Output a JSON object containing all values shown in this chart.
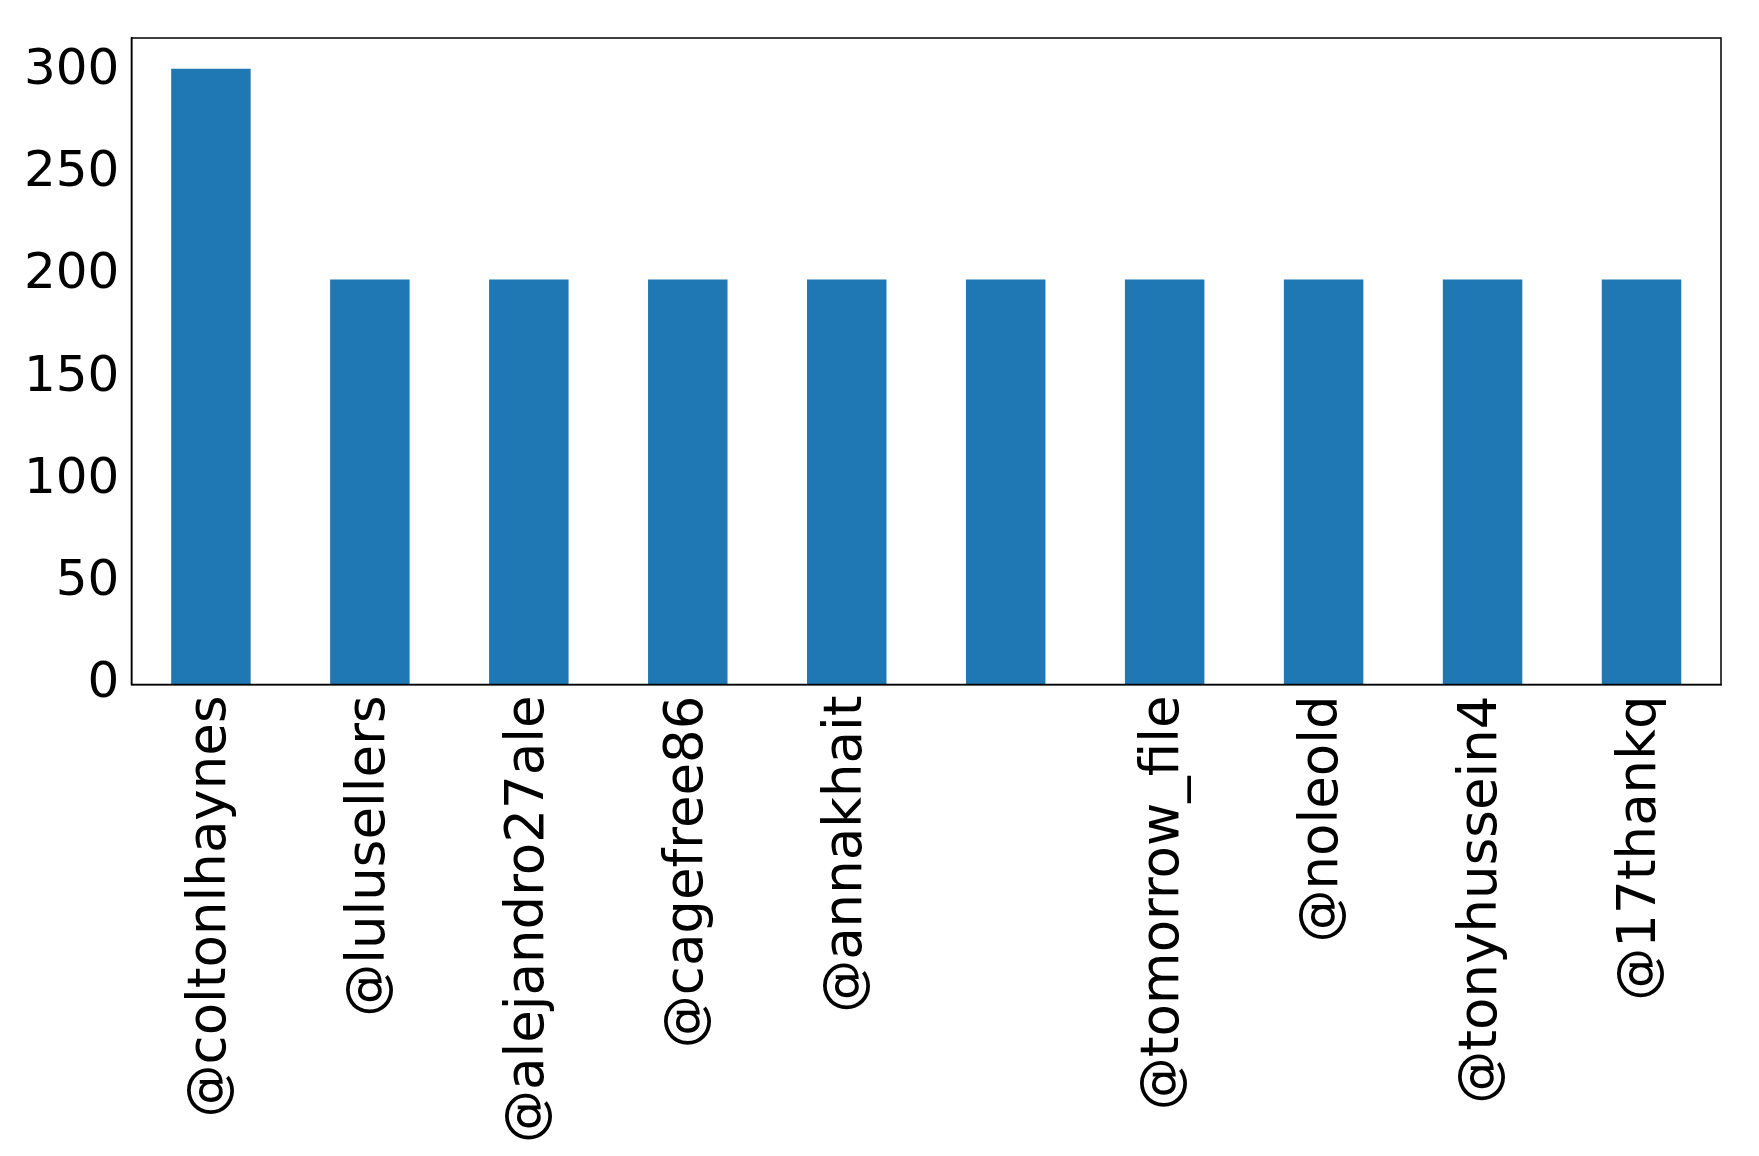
{
  "chart_data": {
    "type": "bar",
    "categories": [
      "@coltonlhaynes",
      "@lulusellers",
      "@alejandro27ale",
      "@cagefree86",
      "@annakhait",
      null,
      "@tomorrow_file",
      "@noleold",
      "@tonyhussein4",
      "@17thankq"
    ],
    "values": [
      301,
      198,
      198,
      198,
      198,
      198,
      198,
      198,
      198,
      198
    ],
    "color": "#1f77b4",
    "ylim": [
      0,
      316
    ],
    "yticks": [
      0,
      50,
      100,
      150,
      200,
      250,
      300
    ],
    "grid": false
  }
}
